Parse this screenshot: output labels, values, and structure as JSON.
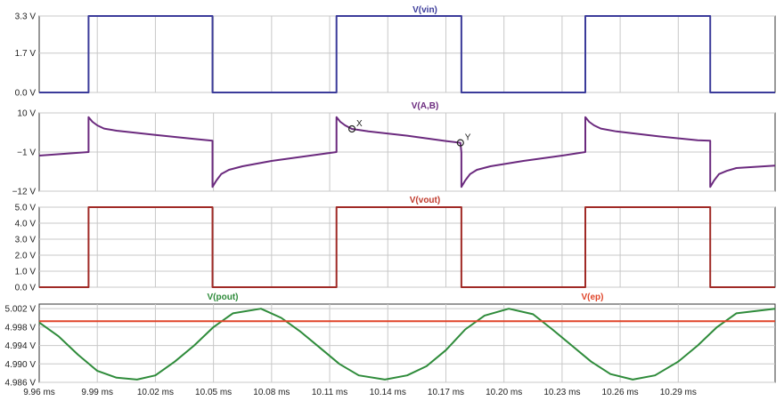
{
  "chart_data": [
    {
      "type": "line",
      "title": "V(vin)",
      "x_unit": "ms",
      "xlim": [
        9.96,
        10.34
      ],
      "ylim": [
        0.0,
        3.3
      ],
      "y_ticks": [
        "3.3 V",
        "1.7 V",
        "0.0 V"
      ],
      "y_tick_values": [
        3.3,
        1.7,
        0.0
      ],
      "grid": true,
      "colors": {
        "line": "#3b3b9a",
        "title": "#3b3b9a"
      },
      "series": [
        {
          "x": [
            9.96,
            9.9855,
            9.9855,
            10.0495,
            10.0495,
            10.1135,
            10.1135,
            10.178,
            10.178,
            10.242,
            10.242,
            10.3065,
            10.3065,
            10.34
          ],
          "y": [
            0.0,
            0.0,
            3.3,
            3.3,
            0.0,
            0.0,
            3.3,
            3.3,
            0.0,
            0.0,
            3.3,
            3.3,
            0.0,
            0.0
          ]
        }
      ]
    },
    {
      "type": "line",
      "title": "V(A,B)",
      "x_unit": "ms",
      "xlim": [
        9.96,
        10.34
      ],
      "ylim": [
        -12,
        10
      ],
      "y_ticks": [
        "10 V",
        "−1 V",
        "−12 V"
      ],
      "y_tick_values": [
        10,
        -1,
        -12
      ],
      "grid": true,
      "colors": {
        "line": "#6b2a7e",
        "title": "#6b2a7e"
      },
      "annotations": [
        {
          "label": "X",
          "x": 10.1215,
          "y": 5.5
        },
        {
          "label": "Y",
          "x": 10.1775,
          "y": 1.6
        }
      ],
      "series": [
        {
          "x": [
            9.96,
            9.9855,
            9.9855,
            9.9875,
            9.99,
            9.9935,
            10.0,
            10.02,
            10.04,
            10.0495,
            10.0495,
            10.0515,
            10.054,
            10.058,
            10.065,
            10.08,
            10.1,
            10.1135,
            10.1135,
            10.1155,
            10.118,
            10.1215,
            10.13,
            10.15,
            10.17,
            10.1775,
            10.178,
            10.178,
            10.18,
            10.1825,
            10.186,
            10.193,
            10.21,
            10.23,
            10.242,
            10.242,
            10.244,
            10.2465,
            10.25,
            10.258,
            10.28,
            10.3,
            10.3065,
            10.3065,
            10.3085,
            10.311,
            10.315,
            10.32,
            10.34
          ],
          "y": [
            -2.0,
            -1.0,
            8.8,
            7.5,
            6.5,
            5.6,
            5.0,
            3.8,
            2.7,
            2.2,
            -10.8,
            -9.0,
            -7.2,
            -6.0,
            -5.0,
            -3.5,
            -2.0,
            -1.0,
            8.8,
            7.5,
            6.5,
            5.5,
            4.8,
            3.6,
            2.1,
            1.6,
            -1.1,
            -10.8,
            -9.0,
            -7.2,
            -6.0,
            -5.0,
            -3.5,
            -2.0,
            -1.0,
            8.8,
            7.5,
            6.5,
            5.6,
            4.8,
            3.4,
            2.3,
            2.2,
            -10.8,
            -9.0,
            -7.2,
            -6.3,
            -5.5,
            -4.8
          ]
        }
      ]
    },
    {
      "type": "line",
      "title": "V(vout)",
      "x_unit": "ms",
      "xlim": [
        9.96,
        10.34
      ],
      "ylim": [
        0.0,
        5.0
      ],
      "y_ticks": [
        "5.0 V",
        "4.0 V",
        "3.0 V",
        "2.0 V",
        "1.0 V",
        "0.0 V"
      ],
      "y_tick_values": [
        5.0,
        4.0,
        3.0,
        2.0,
        1.0,
        0.0
      ],
      "grid": true,
      "colors": {
        "line": "#a02a26",
        "title": "#c0392b"
      },
      "series": [
        {
          "x": [
            9.96,
            9.9855,
            9.9855,
            10.0495,
            10.0495,
            10.1135,
            10.1135,
            10.178,
            10.178,
            10.242,
            10.242,
            10.3065,
            10.3065,
            10.34
          ],
          "y": [
            0.0,
            0.0,
            5.0,
            5.0,
            0.0,
            0.0,
            5.0,
            5.0,
            0.0,
            0.0,
            5.0,
            5.0,
            0.0,
            0.0
          ]
        }
      ]
    },
    {
      "type": "line",
      "title": "",
      "x_unit": "ms",
      "xlim": [
        9.96,
        10.34
      ],
      "ylim": [
        4.986,
        5.003
      ],
      "y_ticks": [
        "5.002 V",
        "4.998 V",
        "4.994 V",
        "4.990 V",
        "4.986 V"
      ],
      "y_tick_values": [
        5.002,
        4.998,
        4.994,
        4.99,
        4.986
      ],
      "x_ticks": [
        "9.96 ms",
        "9.99 ms",
        "10.02 ms",
        "10.05 ms",
        "10.08 ms",
        "10.11 ms",
        "10.14 ms",
        "10.17 ms",
        "10.20 ms",
        "10.23 ms",
        "10.26 ms",
        "10.29 ms"
      ],
      "x_tick_values": [
        9.96,
        9.99,
        10.02,
        10.05,
        10.08,
        10.11,
        10.14,
        10.17,
        10.2,
        10.23,
        10.26,
        10.29
      ],
      "grid": true,
      "series": [
        {
          "name": "V(pout)",
          "color": "#2e8b3a",
          "x": [
            9.96,
            9.97,
            9.98,
            9.99,
            10.0,
            10.0105,
            10.02,
            10.03,
            10.04,
            10.05,
            10.06,
            10.0745,
            10.085,
            10.095,
            10.105,
            10.115,
            10.125,
            10.1385,
            10.15,
            10.16,
            10.17,
            10.18,
            10.19,
            10.2025,
            10.215,
            10.225,
            10.235,
            10.245,
            10.255,
            10.2665,
            10.278,
            10.29,
            10.3,
            10.31,
            10.32,
            10.34
          ],
          "y": [
            4.999,
            4.996,
            4.992,
            4.9885,
            4.987,
            4.9866,
            4.9875,
            4.9905,
            4.994,
            4.998,
            5.001,
            5.002,
            5.0,
            4.997,
            4.9935,
            4.99,
            4.9875,
            4.9866,
            4.9875,
            4.9895,
            4.993,
            4.9975,
            5.0005,
            5.002,
            5.0008,
            4.9975,
            4.994,
            4.9905,
            4.9878,
            4.9866,
            4.9875,
            4.9905,
            4.994,
            4.998,
            5.001,
            5.002
          ]
        },
        {
          "name": "V(ep)",
          "color": "#e0452a",
          "x": [
            9.96,
            10.34
          ],
          "y": [
            4.9993,
            4.9993
          ]
        }
      ]
    }
  ]
}
